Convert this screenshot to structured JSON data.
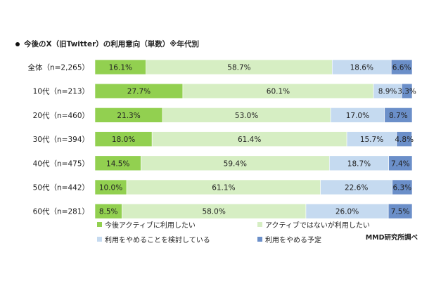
{
  "title_text": "今後のX（旧Twitter）の利用意向（単数）※年代別",
  "source_text": "MMD研究所調べ",
  "colors": {
    "s1": "#92d050",
    "s2": "#d6eec3",
    "s3": "#c5daf0",
    "s4": "#6b8fc9"
  },
  "chart_data": {
    "type": "bar",
    "orientation": "horizontal",
    "stacked": "percent",
    "title": "今後のX（旧Twitter）の利用意向（単数）※年代別",
    "categories": [
      "全体（n=2,265）",
      "10代（n=213）",
      "20代（n=460）",
      "30代（n=394）",
      "40代（n=475）",
      "50代（n=442）",
      "60代（n=281）"
    ],
    "series": [
      {
        "name": "今後アクティブに利用したい",
        "values": [
          16.1,
          27.7,
          21.3,
          18.0,
          14.5,
          10.0,
          8.5
        ],
        "labels": [
          "16.1%",
          "27.7%",
          "21.3%",
          "18.0%",
          "14.5%",
          "10.0%",
          "8.5%"
        ]
      },
      {
        "name": "アクティブではないが利用したい",
        "values": [
          58.7,
          60.1,
          53.0,
          61.4,
          59.4,
          61.1,
          58.0
        ],
        "labels": [
          "58.7%",
          "60.1%",
          "53.0%",
          "61.4%",
          "59.4%",
          "61.1%",
          "58.0%"
        ]
      },
      {
        "name": "利用をやめることを検討している",
        "values": [
          18.6,
          8.9,
          17.0,
          15.7,
          18.7,
          22.6,
          26.0
        ],
        "labels": [
          "18.6%",
          "8.9%",
          "17.0%",
          "15.7%",
          "18.7%",
          "22.6%",
          "26.0%"
        ]
      },
      {
        "name": "利用をやめる予定",
        "values": [
          6.6,
          3.3,
          8.7,
          4.8,
          7.4,
          6.3,
          7.5
        ],
        "labels": [
          "6.6%",
          "3.3%",
          "8.7%",
          "4.8%",
          "7.4%",
          "6.3%",
          "7.5%"
        ]
      }
    ],
    "xlim": [
      0,
      100
    ],
    "legend_position": "bottom"
  }
}
